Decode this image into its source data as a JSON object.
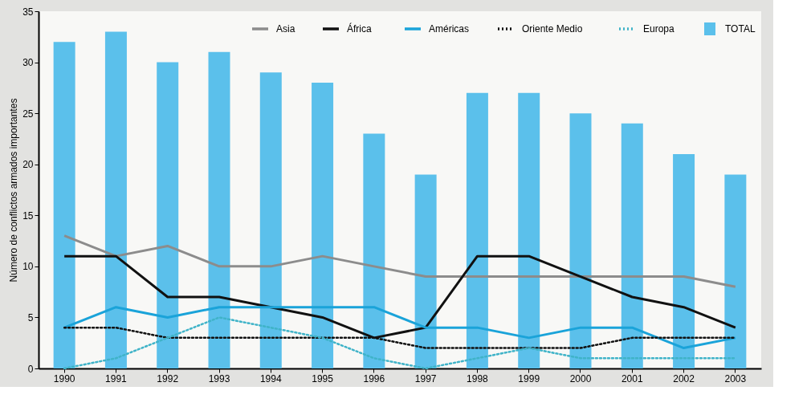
{
  "chart_data": {
    "type": "bar",
    "ylabel": "Número de conflictos armados importantes",
    "categories": [
      "1990",
      "1991",
      "1992",
      "1993",
      "1994",
      "1995",
      "1996",
      "1997",
      "1998",
      "1999",
      "2000",
      "2001",
      "2002",
      "2003"
    ],
    "series": [
      {
        "name": "Asia",
        "type": "line",
        "color": "#8c8c8c",
        "line_style": "solid",
        "values": [
          13,
          11,
          12,
          10,
          10,
          11,
          10,
          9,
          9,
          9,
          9,
          9,
          9,
          8
        ]
      },
      {
        "name": "África",
        "type": "line",
        "color": "#111111",
        "line_style": "solid",
        "values": [
          11,
          11,
          7,
          7,
          6,
          5,
          3,
          4,
          11,
          11,
          9,
          7,
          6,
          4
        ]
      },
      {
        "name": "Américas",
        "type": "line",
        "color": "#1aa3d9",
        "line_style": "solid",
        "values": [
          4,
          6,
          5,
          6,
          6,
          6,
          6,
          4,
          4,
          3,
          4,
          4,
          2,
          3
        ]
      },
      {
        "name": "Oriente Medio",
        "type": "line",
        "color": "#111111",
        "line_style": "dotted",
        "values": [
          4,
          4,
          3,
          3,
          3,
          3,
          3,
          2,
          2,
          2,
          2,
          3,
          3,
          3
        ]
      },
      {
        "name": "Europa",
        "type": "line",
        "color": "#3fb3c8",
        "line_style": "dotted",
        "values": [
          0,
          1,
          3,
          5,
          4,
          3,
          1,
          0,
          1,
          2,
          1,
          1,
          1,
          1
        ]
      },
      {
        "name": "TOTAL",
        "color": "#5bc0eb",
        "values": [
          32,
          33,
          30,
          31,
          29,
          28,
          23,
          19,
          27,
          27,
          25,
          24,
          21,
          19
        ]
      }
    ],
    "ylim": [
      0,
      35
    ],
    "yticks": [
      0,
      5,
      10,
      15,
      20,
      25,
      30,
      35
    ],
    "grid": false,
    "legend": "top right"
  }
}
